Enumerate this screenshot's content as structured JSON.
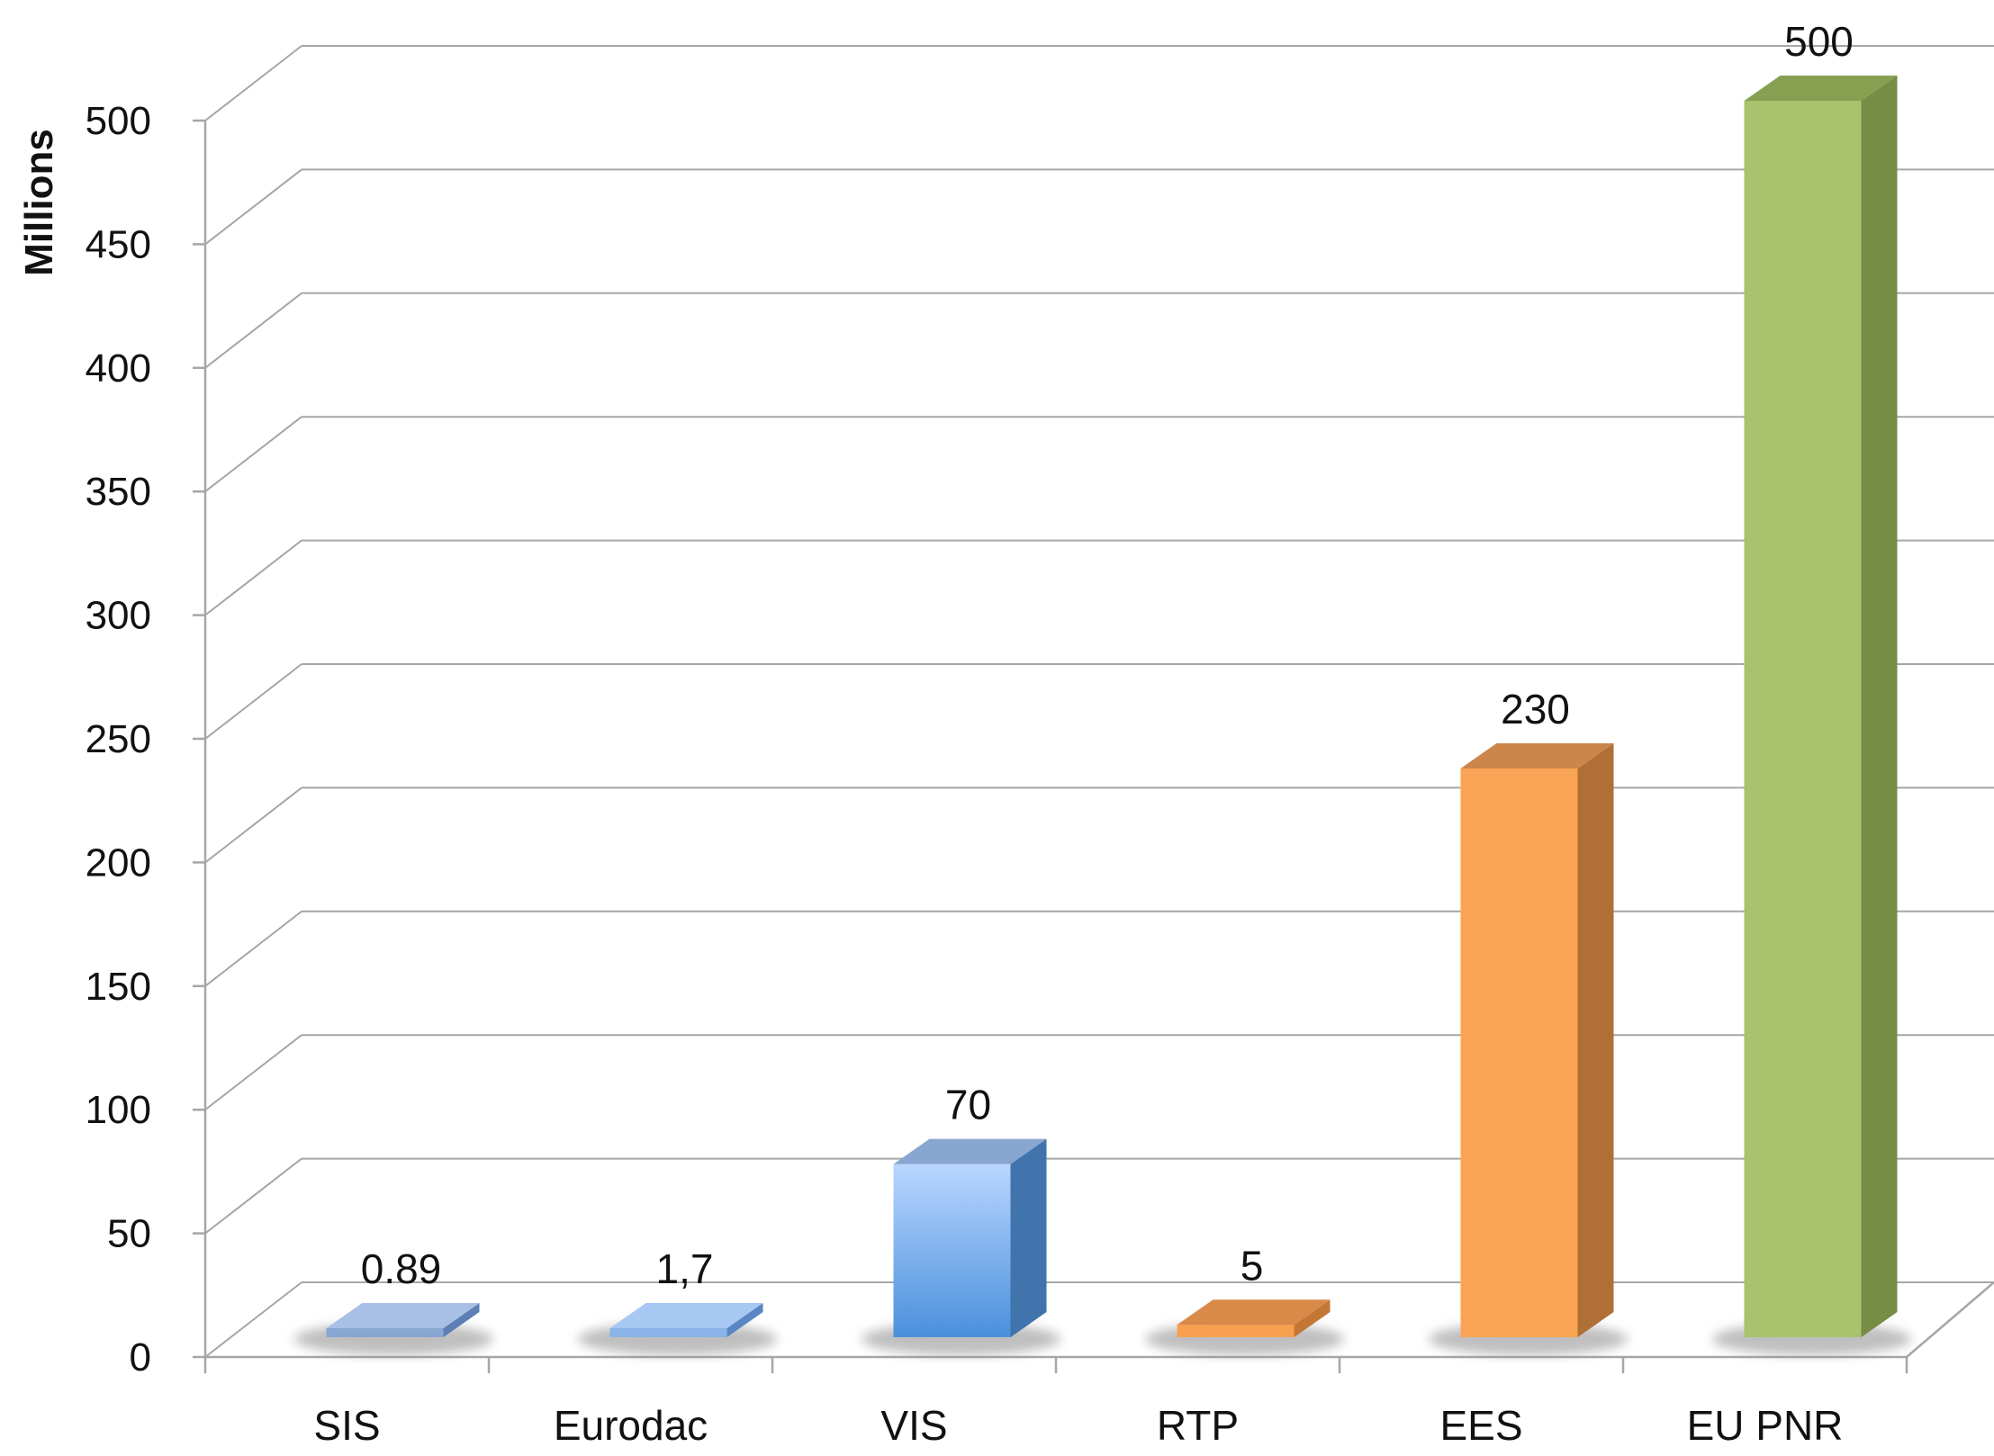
{
  "chart_data": {
    "type": "bar",
    "style": "3d-column",
    "title": "",
    "xlabel": "",
    "ylabel": "Millions",
    "ylim": [
      0,
      500
    ],
    "yticks": [
      "0",
      "50",
      "100",
      "150",
      "200",
      "250",
      "300",
      "350",
      "400",
      "450",
      "500"
    ],
    "grid": true,
    "legend": "none",
    "categories": [
      "SIS",
      "Eurodac",
      "VIS",
      "RTP",
      "EES",
      "EU PNR"
    ],
    "values": [
      0.89,
      1.7,
      70,
      5,
      230,
      500
    ],
    "data_labels": [
      "0.89",
      "1,7",
      "70",
      "5",
      "230",
      "500"
    ],
    "colors": [
      "#8aa6d3",
      "#8ab4e8",
      "#7fb2ee",
      "#f7a04f",
      "#f9a455",
      "#a8c36c"
    ]
  }
}
